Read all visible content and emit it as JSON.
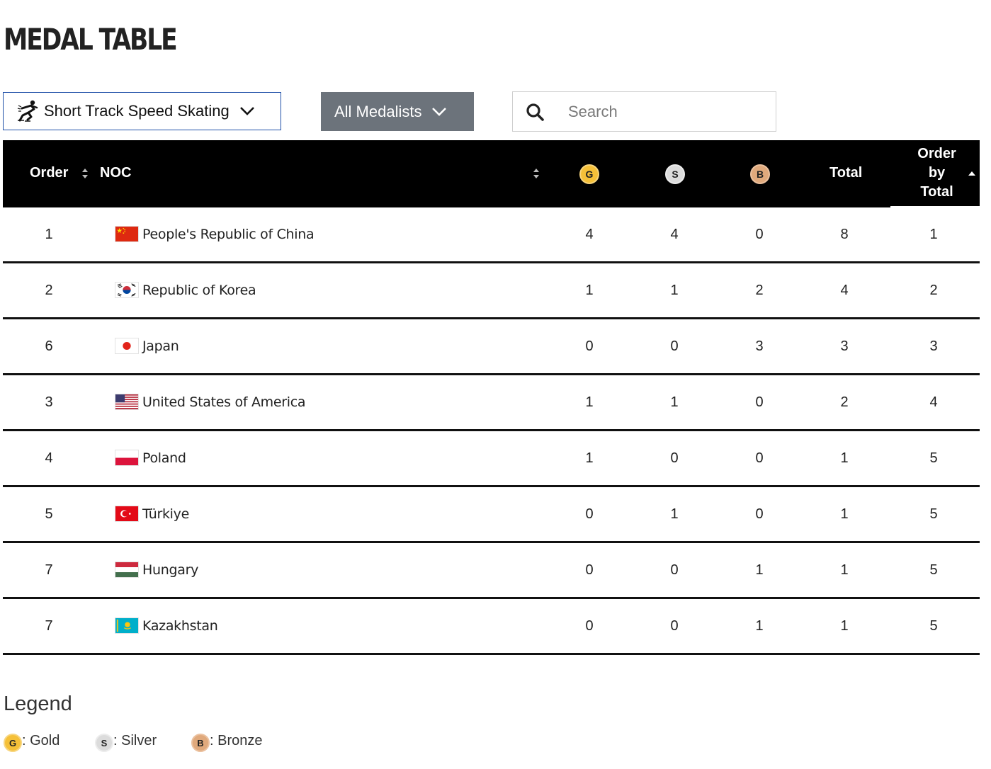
{
  "page": {
    "title": "MEDAL TABLE"
  },
  "filters": {
    "sport": {
      "icon": "short-track-skater-icon",
      "label": "Short Track Speed Skating"
    },
    "medalists": {
      "label": "All Medalists"
    },
    "search": {
      "placeholder": "Search",
      "value": ""
    }
  },
  "table": {
    "headers": {
      "order": "Order",
      "noc": "NOC",
      "gold": "G",
      "silver": "S",
      "bronze": "B",
      "total": "Total",
      "order_by_total": [
        "Order",
        "by",
        "Total"
      ]
    },
    "rows": [
      {
        "order": "1",
        "flag": "china-flag-icon",
        "noc": "People's Republic of China",
        "gold": "4",
        "silver": "4",
        "bronze": "0",
        "total": "8",
        "order_by_total": "1"
      },
      {
        "order": "2",
        "flag": "korea-flag-icon",
        "noc": "Republic of Korea",
        "gold": "1",
        "silver": "1",
        "bronze": "2",
        "total": "4",
        "order_by_total": "2"
      },
      {
        "order": "6",
        "flag": "japan-flag-icon",
        "noc": "Japan",
        "gold": "0",
        "silver": "0",
        "bronze": "3",
        "total": "3",
        "order_by_total": "3"
      },
      {
        "order": "3",
        "flag": "usa-flag-icon",
        "noc": "United States of America",
        "gold": "1",
        "silver": "1",
        "bronze": "0",
        "total": "2",
        "order_by_total": "4"
      },
      {
        "order": "4",
        "flag": "poland-flag-icon",
        "noc": "Poland",
        "gold": "1",
        "silver": "0",
        "bronze": "0",
        "total": "1",
        "order_by_total": "5"
      },
      {
        "order": "5",
        "flag": "turkiye-flag-icon",
        "noc": "Türkiye",
        "gold": "0",
        "silver": "1",
        "bronze": "0",
        "total": "1",
        "order_by_total": "5"
      },
      {
        "order": "7",
        "flag": "hungary-flag-icon",
        "noc": "Hungary",
        "gold": "0",
        "silver": "0",
        "bronze": "1",
        "total": "1",
        "order_by_total": "5"
      },
      {
        "order": "7",
        "flag": "kazakhstan-flag-icon",
        "noc": "Kazakhstan",
        "gold": "0",
        "silver": "0",
        "bronze": "1",
        "total": "1",
        "order_by_total": "5"
      }
    ]
  },
  "legend": {
    "title": "Legend",
    "items": [
      {
        "badge": "G",
        "label": ": Gold"
      },
      {
        "badge": "S",
        "label": ": Silver"
      },
      {
        "badge": "B",
        "label": ": Bronze"
      }
    ]
  },
  "colors": {
    "gold": "#f5c038",
    "silver": "#dcdcdc",
    "bronze": "#e0a97c",
    "header_bg": "#000000",
    "dropdown_active_bg": "#6c737b",
    "dropdown_border": "#1f4fa8"
  }
}
